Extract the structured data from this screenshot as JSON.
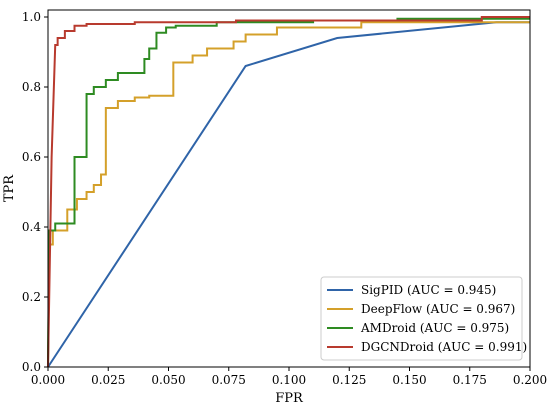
{
  "chart_data": {
    "type": "line",
    "title": "",
    "xlabel": "FPR",
    "ylabel": "TPR",
    "xlim": [
      0.0,
      0.2
    ],
    "ylim": [
      0.0,
      1.02
    ],
    "xticks": [
      "0.000",
      "0.025",
      "0.050",
      "0.075",
      "0.100",
      "0.125",
      "0.150",
      "0.175",
      "0.200"
    ],
    "yticks": [
      "0.0",
      "0.2",
      "0.4",
      "0.6",
      "0.8",
      "1.0"
    ],
    "grid": false,
    "legend_position": "bottom-right",
    "series": [
      {
        "name": "SigPID (AUC = 0.945)",
        "color": "#2f64a8",
        "points": [
          [
            0.0,
            0.0
          ],
          [
            0.082,
            0.86
          ],
          [
            0.12,
            0.94
          ],
          [
            0.186,
            0.985
          ],
          [
            0.2,
            0.985
          ]
        ]
      },
      {
        "name": "DeepFlow (AUC = 0.967)",
        "color": "#d4a02a",
        "points": [
          [
            0.0,
            0.0
          ],
          [
            0.0005,
            0.35
          ],
          [
            0.002,
            0.35
          ],
          [
            0.002,
            0.39
          ],
          [
            0.008,
            0.39
          ],
          [
            0.008,
            0.45
          ],
          [
            0.012,
            0.45
          ],
          [
            0.012,
            0.48
          ],
          [
            0.016,
            0.48
          ],
          [
            0.016,
            0.5
          ],
          [
            0.019,
            0.5
          ],
          [
            0.019,
            0.52
          ],
          [
            0.022,
            0.52
          ],
          [
            0.022,
            0.55
          ],
          [
            0.024,
            0.55
          ],
          [
            0.024,
            0.74
          ],
          [
            0.029,
            0.74
          ],
          [
            0.029,
            0.76
          ],
          [
            0.036,
            0.76
          ],
          [
            0.036,
            0.77
          ],
          [
            0.042,
            0.77
          ],
          [
            0.042,
            0.775
          ],
          [
            0.052,
            0.775
          ],
          [
            0.052,
            0.87
          ],
          [
            0.06,
            0.87
          ],
          [
            0.06,
            0.89
          ],
          [
            0.066,
            0.89
          ],
          [
            0.066,
            0.91
          ],
          [
            0.077,
            0.91
          ],
          [
            0.077,
            0.93
          ],
          [
            0.082,
            0.93
          ],
          [
            0.082,
            0.95
          ],
          [
            0.095,
            0.95
          ],
          [
            0.095,
            0.97
          ],
          [
            0.13,
            0.97
          ],
          [
            0.13,
            0.985
          ],
          [
            0.2,
            0.985
          ]
        ]
      },
      {
        "name": "AMDroid (AUC = 0.975)",
        "color": "#2e8b22",
        "points": [
          [
            0.0,
            0.0
          ],
          [
            0.0005,
            0.39
          ],
          [
            0.003,
            0.39
          ],
          [
            0.003,
            0.41
          ],
          [
            0.011,
            0.41
          ],
          [
            0.011,
            0.6
          ],
          [
            0.016,
            0.6
          ],
          [
            0.016,
            0.78
          ],
          [
            0.019,
            0.78
          ],
          [
            0.019,
            0.8
          ],
          [
            0.024,
            0.8
          ],
          [
            0.024,
            0.82
          ],
          [
            0.029,
            0.82
          ],
          [
            0.029,
            0.84
          ],
          [
            0.04,
            0.84
          ],
          [
            0.04,
            0.88
          ],
          [
            0.042,
            0.88
          ],
          [
            0.042,
            0.91
          ],
          [
            0.045,
            0.91
          ],
          [
            0.045,
            0.955
          ],
          [
            0.049,
            0.955
          ],
          [
            0.049,
            0.97
          ],
          [
            0.053,
            0.97
          ],
          [
            0.053,
            0.975
          ],
          [
            0.07,
            0.975
          ],
          [
            0.07,
            0.985
          ],
          [
            0.11,
            0.985
          ],
          [
            0.11,
            0.99
          ],
          [
            0.145,
            0.99
          ],
          [
            0.145,
            0.995
          ],
          [
            0.2,
            0.995
          ]
        ]
      },
      {
        "name": "DGCNDroid (AUC = 0.991)",
        "color": "#b83a2e",
        "points": [
          [
            0.0,
            0.0
          ],
          [
            0.0015,
            0.6
          ],
          [
            0.003,
            0.92
          ],
          [
            0.004,
            0.92
          ],
          [
            0.004,
            0.94
          ],
          [
            0.007,
            0.94
          ],
          [
            0.007,
            0.96
          ],
          [
            0.011,
            0.96
          ],
          [
            0.011,
            0.975
          ],
          [
            0.016,
            0.975
          ],
          [
            0.016,
            0.98
          ],
          [
            0.036,
            0.98
          ],
          [
            0.036,
            0.985
          ],
          [
            0.078,
            0.985
          ],
          [
            0.078,
            0.99
          ],
          [
            0.18,
            0.99
          ],
          [
            0.18,
            1.0
          ],
          [
            0.2,
            1.0
          ]
        ]
      }
    ]
  }
}
